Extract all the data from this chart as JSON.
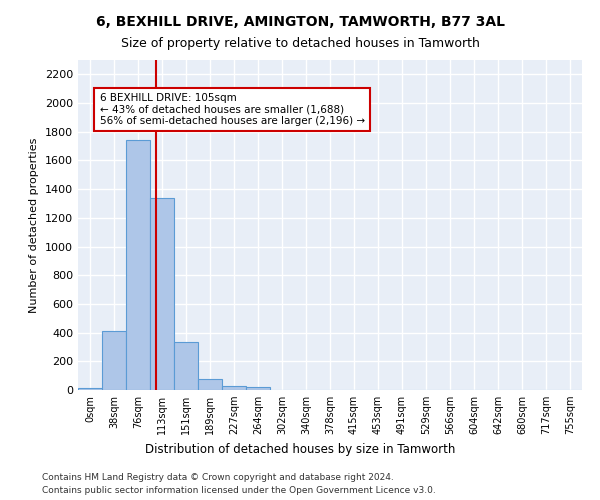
{
  "title1": "6, BEXHILL DRIVE, AMINGTON, TAMWORTH, B77 3AL",
  "title2": "Size of property relative to detached houses in Tamworth",
  "xlabel": "Distribution of detached houses by size in Tamworth",
  "ylabel": "Number of detached properties",
  "bin_labels": [
    "0sqm",
    "38sqm",
    "76sqm",
    "113sqm",
    "151sqm",
    "189sqm",
    "227sqm",
    "264sqm",
    "302sqm",
    "340sqm",
    "378sqm",
    "415sqm",
    "453sqm",
    "491sqm",
    "529sqm",
    "566sqm",
    "604sqm",
    "642sqm",
    "680sqm",
    "717sqm",
    "755sqm"
  ],
  "bar_values": [
    15,
    410,
    1740,
    1340,
    335,
    75,
    30,
    18,
    0,
    0,
    0,
    0,
    0,
    0,
    0,
    0,
    0,
    0,
    0,
    0,
    0
  ],
  "bar_color": "#aec6e8",
  "bar_edge_color": "#5b9bd5",
  "background_color": "#e8eef7",
  "grid_color": "#ffffff",
  "vline_x": 2.74,
  "vline_color": "#cc0000",
  "annotation_text": "6 BEXHILL DRIVE: 105sqm\n← 43% of detached houses are smaller (1,688)\n56% of semi-detached houses are larger (2,196) →",
  "annotation_box_color": "#ffffff",
  "annotation_box_edge": "#cc0000",
  "ylim": [
    0,
    2300
  ],
  "yticks": [
    0,
    200,
    400,
    600,
    800,
    1000,
    1200,
    1400,
    1600,
    1800,
    2000,
    2200
  ],
  "footer1": "Contains HM Land Registry data © Crown copyright and database right 2024.",
  "footer2": "Contains public sector information licensed under the Open Government Licence v3.0."
}
